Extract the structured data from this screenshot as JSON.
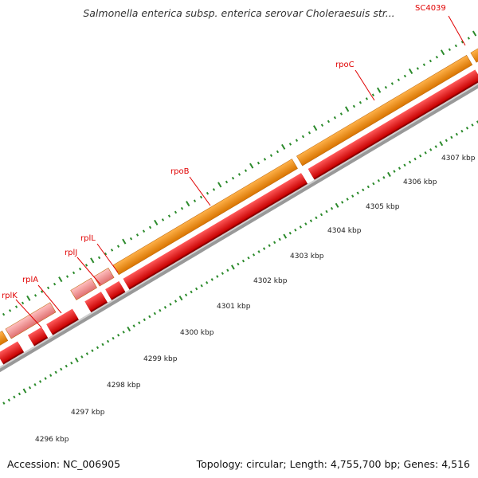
{
  "title": "Salmonella enterica subsp. enterica serovar Choleraesuis str...",
  "accession": "Accession: NC_006905",
  "summary": "Topology: circular; Length: 4,755,700 bp; Genes: 4,516",
  "colors": {
    "feature_cds": "#f08c00",
    "feature_green": "#99e63a",
    "feature_pink": "#f08a8a",
    "gene": "#ee0000",
    "backbone": "#999999",
    "ticks": "#2b8a2b",
    "label": "#e00000"
  },
  "gene_labels": [
    {
      "id": "sc4039",
      "text": "SC4039"
    },
    {
      "id": "rpoc",
      "text": "rpoC"
    },
    {
      "id": "rpob",
      "text": "rpoB"
    },
    {
      "id": "rpll",
      "text": "rplL"
    },
    {
      "id": "rplj",
      "text": "rplJ"
    },
    {
      "id": "rpla",
      "text": "rplA"
    },
    {
      "id": "rplk",
      "text": "rplK"
    }
  ],
  "scale_labels": [
    "4296 kbp",
    "4297 kbp",
    "4298 kbp",
    "4299 kbp",
    "4300 kbp",
    "4301 kbp",
    "4302 kbp",
    "4303 kbp",
    "4304 kbp",
    "4305 kbp",
    "4306 kbp",
    "4307 kbp"
  ]
}
